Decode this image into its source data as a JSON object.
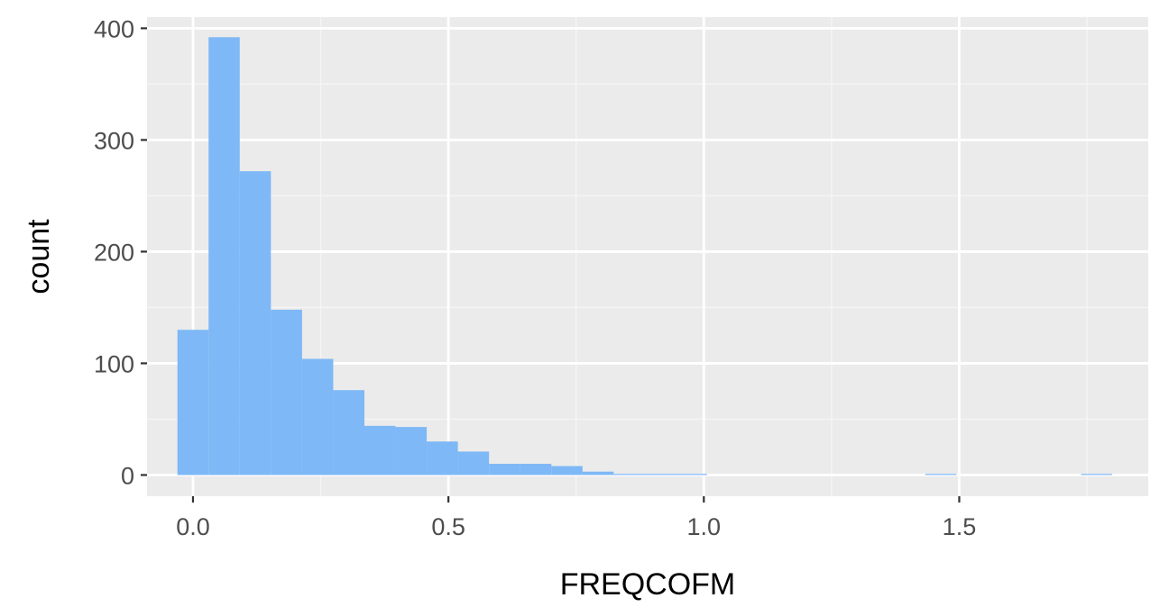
{
  "chart_data": {
    "type": "bar",
    "subtype": "histogram",
    "title": "",
    "xlabel": "FREQCOFM",
    "ylabel": "count",
    "xlim": [
      -0.09,
      1.87
    ],
    "ylim": [
      -19,
      410
    ],
    "x_ticks": [
      {
        "value": 0.0,
        "label": "0.0"
      },
      {
        "value": 0.5,
        "label": "0.5"
      },
      {
        "value": 1.0,
        "label": "1.0"
      },
      {
        "value": 1.5,
        "label": "1.5"
      }
    ],
    "y_ticks": [
      {
        "value": 0,
        "label": "0"
      },
      {
        "value": 100,
        "label": "100"
      },
      {
        "value": 200,
        "label": "200"
      },
      {
        "value": 300,
        "label": "300"
      },
      {
        "value": 400,
        "label": "400"
      }
    ],
    "bin_width": 0.061,
    "bins": [
      {
        "x0": -0.0305,
        "x1": 0.0305,
        "count": 130
      },
      {
        "x0": 0.0305,
        "x1": 0.0915,
        "count": 392
      },
      {
        "x0": 0.0915,
        "x1": 0.1525,
        "count": 272
      },
      {
        "x0": 0.1525,
        "x1": 0.2135,
        "count": 148
      },
      {
        "x0": 0.2135,
        "x1": 0.2745,
        "count": 104
      },
      {
        "x0": 0.2745,
        "x1": 0.3355,
        "count": 76
      },
      {
        "x0": 0.3355,
        "x1": 0.3965,
        "count": 44
      },
      {
        "x0": 0.3965,
        "x1": 0.4575,
        "count": 43
      },
      {
        "x0": 0.4575,
        "x1": 0.5185,
        "count": 30
      },
      {
        "x0": 0.5185,
        "x1": 0.5795,
        "count": 21
      },
      {
        "x0": 0.5795,
        "x1": 0.6405,
        "count": 10
      },
      {
        "x0": 0.6405,
        "x1": 0.7015,
        "count": 10
      },
      {
        "x0": 0.7015,
        "x1": 0.7625,
        "count": 8
      },
      {
        "x0": 0.7625,
        "x1": 0.8235,
        "count": 3
      },
      {
        "x0": 0.8235,
        "x1": 0.8845,
        "count": 1
      },
      {
        "x0": 0.8845,
        "x1": 0.9455,
        "count": 1
      },
      {
        "x0": 0.9455,
        "x1": 1.0065,
        "count": 1
      },
      {
        "x0": 1.4335,
        "x1": 1.4945,
        "count": 1
      },
      {
        "x0": 1.7385,
        "x1": 1.7995,
        "count": 1
      }
    ],
    "grid": true,
    "legend": "none",
    "colors": {
      "bar_fill": "#7EB8F6",
      "panel_bg": "#EBEBEB",
      "grid_major": "#FFFFFF",
      "grid_minor": "#F5F5F5",
      "tick_text": "#4D4D4D",
      "tick_mark": "#333333"
    }
  }
}
